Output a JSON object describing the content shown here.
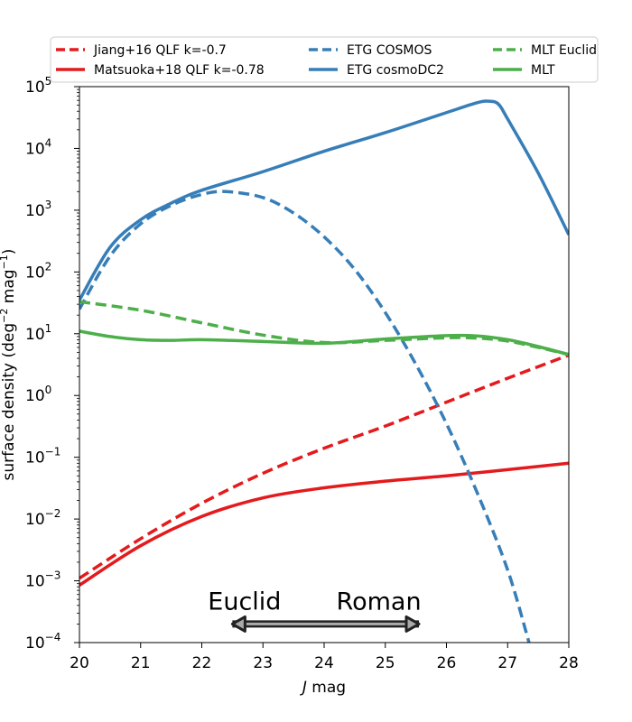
{
  "chart_data": {
    "type": "line",
    "title": "",
    "xlabel_italic": "J",
    "xlabel_rest": " mag",
    "ylabel": "surface density (deg",
    "ylabel_exp1": "−2",
    "ylabel_mid": " mag",
    "ylabel_exp2": "−1",
    "ylabel_end": ")",
    "xlim": [
      20,
      28
    ],
    "ylim": [
      0.0001,
      100000
    ],
    "yscale": "log",
    "grid": false,
    "legend_placement": "top, above plot, 3 columns",
    "x_ticks": [
      "20",
      "21",
      "22",
      "23",
      "24",
      "25",
      "26",
      "27",
      "28"
    ],
    "y_ticks": [
      {
        "base": "10",
        "exp": "−4"
      },
      {
        "base": "10",
        "exp": "−3"
      },
      {
        "base": "10",
        "exp": "−2"
      },
      {
        "base": "10",
        "exp": "−1"
      },
      {
        "base": "10",
        "exp": "0"
      },
      {
        "base": "10",
        "exp": "1"
      },
      {
        "base": "10",
        "exp": "2"
      },
      {
        "base": "10",
        "exp": "3"
      },
      {
        "base": "10",
        "exp": "4"
      },
      {
        "base": "10",
        "exp": "5"
      }
    ],
    "series": [
      {
        "name": "Jiang+16 QLF k=-0.7",
        "color": "#e41a1c",
        "style": "dashed",
        "x": [
          20,
          21,
          22,
          23,
          24,
          25,
          26,
          27,
          28
        ],
        "y": [
          0.0011,
          0.0048,
          0.018,
          0.055,
          0.14,
          0.32,
          0.78,
          1.9,
          4.5
        ]
      },
      {
        "name": "Matsuoka+18 QLF k=-0.78",
        "color": "#e41a1c",
        "style": "solid",
        "x": [
          20,
          21,
          22,
          23,
          24,
          25,
          26,
          27,
          28
        ],
        "y": [
          0.00085,
          0.0037,
          0.011,
          0.022,
          0.032,
          0.041,
          0.05,
          0.063,
          0.08
        ]
      },
      {
        "name": "ETG COSMOS",
        "color": "#377eb8",
        "style": "dashed",
        "x": [
          20,
          20.5,
          21,
          21.5,
          22,
          22.4,
          23,
          23.5,
          24,
          24.5,
          25,
          25.5,
          26,
          26.5,
          27,
          27.35
        ],
        "y": [
          25,
          180,
          600,
          1200,
          1800,
          2000,
          1600,
          900,
          370,
          110,
          22,
          3.2,
          0.35,
          0.027,
          0.0015,
          0.0001
        ]
      },
      {
        "name": "ETG cosmoDC2",
        "color": "#377eb8",
        "style": "solid",
        "x": [
          20,
          20.5,
          21,
          21.5,
          22,
          23,
          24,
          25,
          26,
          26.5,
          26.7,
          26.85,
          27,
          27.5,
          28
        ],
        "y": [
          35,
          250,
          700,
          1300,
          2100,
          4200,
          9000,
          18000,
          38000,
          55000,
          58000,
          52000,
          30000,
          4000,
          400
        ]
      },
      {
        "name": "MLT Euclid",
        "color": "#4daf4a",
        "style": "dashed",
        "x": [
          20,
          21,
          22,
          23,
          24,
          25,
          26,
          26.5,
          27,
          27.5,
          28
        ],
        "y": [
          33,
          24,
          15,
          9.5,
          7.2,
          7.8,
          8.6,
          8.5,
          7.6,
          6,
          4.6
        ]
      },
      {
        "name": "MLT",
        "color": "#4daf4a",
        "style": "solid",
        "x": [
          20,
          20.5,
          21,
          21.5,
          22,
          23,
          24,
          25,
          26,
          26.5,
          27,
          27.5,
          28
        ],
        "y": [
          11,
          9,
          8,
          7.8,
          8,
          7.5,
          7,
          8.2,
          9.3,
          9.2,
          8,
          6.2,
          4.6
        ]
      }
    ],
    "annotations": [
      {
        "text": "Euclid",
        "x": 22.1
      },
      {
        "text": "Roman",
        "x": 24.2
      }
    ],
    "arrows": [
      {
        "name": "Euclid",
        "from": 24,
        "to": 22.5,
        "y": 0.0002
      },
      {
        "name": "Roman",
        "from": 24,
        "to": 25.55,
        "y": 0.0002
      }
    ]
  }
}
